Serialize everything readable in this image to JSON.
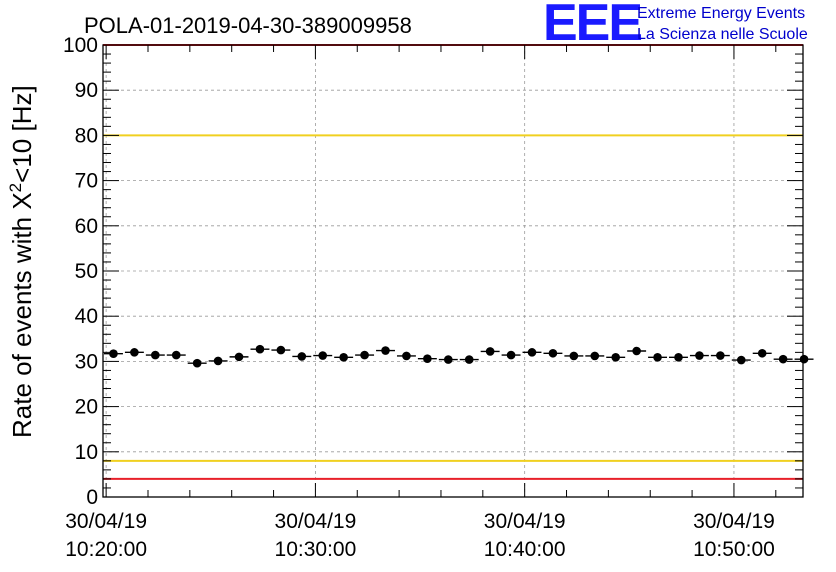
{
  "chart_data": {
    "type": "scatter",
    "title": "POLA-01-2019-04-30-389009958",
    "ylabel_prefix": "Rate of events with ",
    "ylabel_chi": "X",
    "ylabel_sup": "2",
    "ylabel_suffix": "<10 [Hz]",
    "xlabel": "",
    "ylim": [
      0,
      100
    ],
    "y_ticks": [
      "0",
      "10",
      "20",
      "30",
      "40",
      "50",
      "60",
      "70",
      "80",
      "90",
      "100"
    ],
    "x_ticks": [
      {
        "minute": 20,
        "date": "30/04/19",
        "time": "10:20:00"
      },
      {
        "minute": 30,
        "date": "30/04/19",
        "time": "10:30:00"
      },
      {
        "minute": 40,
        "date": "30/04/19",
        "time": "10:40:00"
      },
      {
        "minute": 50,
        "date": "30/04/19",
        "time": "10:50:00"
      }
    ],
    "xlim_minutes": [
      19.85,
      53.3
    ],
    "grid": true,
    "reference_lines": [
      {
        "value": 100,
        "color": "#e8202a"
      },
      {
        "value": 80,
        "color": "#f0d020"
      },
      {
        "value": 8,
        "color": "#f0d020"
      },
      {
        "value": 4,
        "color": "#e8202a"
      }
    ],
    "series": [
      {
        "name": "rate",
        "color": "#000000",
        "bin_minutes": 1,
        "x_start": 19.85,
        "values": [
          31.7,
          32.0,
          31.4,
          31.4,
          29.6,
          30.1,
          31.0,
          32.7,
          32.5,
          31.1,
          31.3,
          30.9,
          31.4,
          32.4,
          31.2,
          30.6,
          30.4,
          30.4,
          32.2,
          31.4,
          32.0,
          31.8,
          31.2,
          31.2,
          30.9,
          32.3,
          30.9,
          30.9,
          31.3,
          31.3,
          30.3,
          31.8,
          30.5,
          30.5
        ]
      }
    ]
  },
  "logo": {
    "letters": "EEE",
    "line1": "Extreme Energy Events",
    "line2": "La Scienza nelle Scuole"
  }
}
